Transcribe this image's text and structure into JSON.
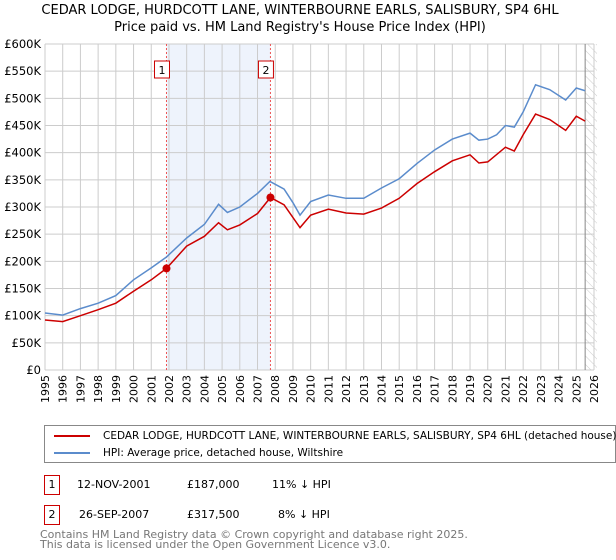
{
  "title": {
    "line1": "CEDAR LODGE, HURDCOTT LANE, WINTERBOURNE EARLS, SALISBURY, SP4 6HL",
    "line2": "Price paid vs. HM Land Registry's House Price Index (HPI)"
  },
  "chart_data": {
    "type": "line",
    "xlim": [
      1995,
      2026
    ],
    "ylim": [
      0,
      600000
    ],
    "x_ticks": [
      "1995",
      "1996",
      "1997",
      "1998",
      "1999",
      "2000",
      "2001",
      "2002",
      "2003",
      "2004",
      "2005",
      "2006",
      "2007",
      "2008",
      "2009",
      "2010",
      "2011",
      "2012",
      "2013",
      "2014",
      "2015",
      "2016",
      "2017",
      "2018",
      "2019",
      "2020",
      "2021",
      "2022",
      "2023",
      "2024",
      "2025",
      "2026"
    ],
    "y_ticks": [
      {
        "v": 0,
        "label": "£0"
      },
      {
        "v": 50000,
        "label": "£50K"
      },
      {
        "v": 100000,
        "label": "£100K"
      },
      {
        "v": 150000,
        "label": "£150K"
      },
      {
        "v": 200000,
        "label": "£200K"
      },
      {
        "v": 250000,
        "label": "£250K"
      },
      {
        "v": 300000,
        "label": "£300K"
      },
      {
        "v": 350000,
        "label": "£350K"
      },
      {
        "v": 400000,
        "label": "£400K"
      },
      {
        "v": 450000,
        "label": "£450K"
      },
      {
        "v": 500000,
        "label": "£500K"
      },
      {
        "v": 550000,
        "label": "£550K"
      },
      {
        "v": 600000,
        "label": "£600K"
      }
    ],
    "grid": true,
    "data_end": 2025.5,
    "shaded_range": [
      2001.86,
      2007.73
    ],
    "series": [
      {
        "name": "CEDAR LODGE, HURDCOTT LANE, WINTERBOURNE EARLS, SALISBURY, SP4 6HL (detached house)",
        "color": "#cc0000",
        "points": [
          [
            1995,
            92000
          ],
          [
            1996,
            89000
          ],
          [
            1997,
            100000
          ],
          [
            1998,
            111000
          ],
          [
            1999,
            123000
          ],
          [
            2000,
            145000
          ],
          [
            2001,
            166000
          ],
          [
            2001.86,
            187000
          ],
          [
            2003,
            228000
          ],
          [
            2004,
            246000
          ],
          [
            2004.8,
            271000
          ],
          [
            2005.3,
            258000
          ],
          [
            2006,
            267000
          ],
          [
            2007,
            288000
          ],
          [
            2007.73,
            317500
          ],
          [
            2008.5,
            304000
          ],
          [
            2009.4,
            262000
          ],
          [
            2010,
            285000
          ],
          [
            2011,
            296000
          ],
          [
            2012,
            289000
          ],
          [
            2013,
            287000
          ],
          [
            2014,
            298000
          ],
          [
            2015,
            316000
          ],
          [
            2016,
            343000
          ],
          [
            2017,
            365000
          ],
          [
            2018,
            385000
          ],
          [
            2019,
            396000
          ],
          [
            2019.5,
            381000
          ],
          [
            2020,
            383000
          ],
          [
            2021,
            410000
          ],
          [
            2021.5,
            403000
          ],
          [
            2022,
            433000
          ],
          [
            2022.7,
            471000
          ],
          [
            2023.5,
            461000
          ],
          [
            2024.4,
            441000
          ],
          [
            2025,
            467000
          ],
          [
            2025.5,
            458000
          ]
        ]
      },
      {
        "name": "HPI: Average price, detached house, Wiltshire",
        "color": "#5b8ccc",
        "points": [
          [
            1995,
            105000
          ],
          [
            1996,
            101000
          ],
          [
            1997,
            113000
          ],
          [
            1998,
            123000
          ],
          [
            1999,
            137000
          ],
          [
            2000,
            166000
          ],
          [
            2001,
            188000
          ],
          [
            2001.86,
            208000
          ],
          [
            2003,
            243000
          ],
          [
            2004,
            268000
          ],
          [
            2004.8,
            305000
          ],
          [
            2005.3,
            290000
          ],
          [
            2006,
            300000
          ],
          [
            2007,
            325000
          ],
          [
            2007.7,
            347000
          ],
          [
            2008.5,
            333000
          ],
          [
            2009,
            308000
          ],
          [
            2009.4,
            285000
          ],
          [
            2010,
            310000
          ],
          [
            2011,
            322000
          ],
          [
            2012,
            316000
          ],
          [
            2013,
            316000
          ],
          [
            2014,
            335000
          ],
          [
            2015,
            352000
          ],
          [
            2016,
            380000
          ],
          [
            2017,
            405000
          ],
          [
            2018,
            425000
          ],
          [
            2019,
            436000
          ],
          [
            2019.5,
            423000
          ],
          [
            2020,
            425000
          ],
          [
            2020.5,
            433000
          ],
          [
            2021,
            450000
          ],
          [
            2021.5,
            447000
          ],
          [
            2022,
            475000
          ],
          [
            2022.7,
            525000
          ],
          [
            2023.5,
            516000
          ],
          [
            2024.4,
            497000
          ],
          [
            2025,
            519000
          ],
          [
            2025.5,
            514000
          ]
        ]
      }
    ],
    "sales": [
      {
        "num": "1",
        "x": 2001.86,
        "price": 187000
      },
      {
        "num": "2",
        "x": 2007.73,
        "price": 317500
      }
    ]
  },
  "legend": {
    "red": "CEDAR LODGE, HURDCOTT LANE, WINTERBOURNE EARLS, SALISBURY, SP4 6HL (detached house)",
    "blue": "HPI: Average price, detached house, Wiltshire"
  },
  "transactions": [
    {
      "num": "1",
      "date": "12-NOV-2001",
      "price": "£187,000",
      "hpi": "11% ↓ HPI"
    },
    {
      "num": "2",
      "date": "26-SEP-2007",
      "price": "£317,500",
      "hpi": "8% ↓ HPI"
    }
  ],
  "footer": {
    "line1": "Contains HM Land Registry data © Crown copyright and database right 2025.",
    "line2": "This data is licensed under the Open Government Licence v3.0."
  }
}
